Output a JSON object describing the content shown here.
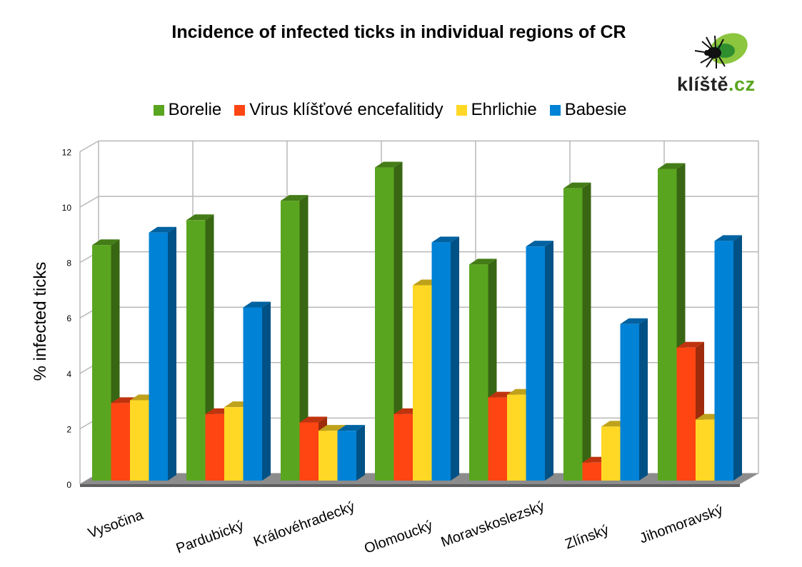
{
  "title": "Incidence of infected ticks in individual regions of CR",
  "logo": {
    "text_main": "klíště",
    "text_tld": ".cz",
    "icon": "tick-icon"
  },
  "colors": {
    "Borelie": "#5aa51f",
    "Virus klíšťové encefalitidy": "#ff4512",
    "Ehrlichie": "#ffd825",
    "Babesie": "#0082d6"
  },
  "chart_data": {
    "type": "bar",
    "title": "Incidence of infected ticks in individual regions of CR",
    "xlabel": "",
    "ylabel": "% infected ticks",
    "ylim": [
      0,
      12
    ],
    "yticks": [
      "0",
      "2",
      "4",
      "6",
      "8",
      "10",
      "12"
    ],
    "grid": true,
    "legend_position": "top",
    "style": "3d-clustered-column",
    "categories": [
      "Vysočina",
      "Pardubický",
      "Královéhradecký",
      "Olomoucký",
      "Moravskoslezský",
      "Zlínský",
      "Jihomoravský"
    ],
    "series": [
      {
        "name": "Borelie",
        "color": "#5aa51f",
        "values": [
          8.5,
          9.4,
          10.1,
          11.3,
          7.8,
          10.55,
          11.25
        ]
      },
      {
        "name": "Virus klíšťové encefalitidy",
        "color": "#ff4512",
        "values": [
          2.8,
          2.4,
          2.1,
          2.4,
          3.0,
          0.65,
          4.8
        ]
      },
      {
        "name": "Ehrlichie",
        "color": "#ffd825",
        "values": [
          2.9,
          2.65,
          1.8,
          7.05,
          3.1,
          1.95,
          2.2
        ]
      },
      {
        "name": "Babesie",
        "color": "#0082d6",
        "values": [
          8.95,
          6.25,
          1.8,
          8.6,
          8.45,
          5.65,
          8.65
        ]
      }
    ]
  }
}
